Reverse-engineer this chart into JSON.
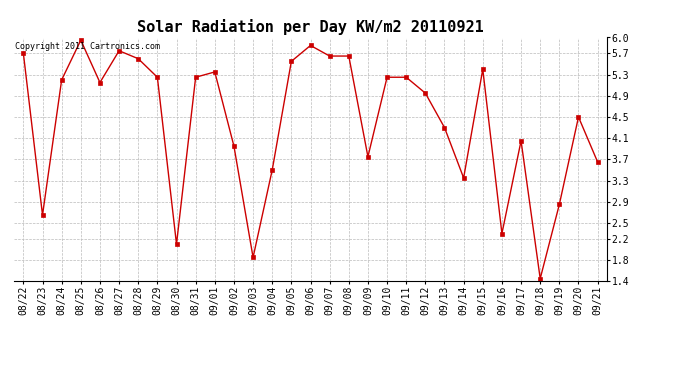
{
  "title": "Solar Radiation per Day KW/m2 20110921",
  "copyright_text": "Copyright 2011 Cartronics.com",
  "x_labels": [
    "08/22",
    "08/23",
    "08/24",
    "08/25",
    "08/26",
    "08/27",
    "08/28",
    "08/29",
    "08/30",
    "08/31",
    "09/01",
    "09/02",
    "09/03",
    "09/04",
    "09/05",
    "09/06",
    "09/07",
    "09/08",
    "09/09",
    "09/10",
    "09/11",
    "09/12",
    "09/13",
    "09/14",
    "09/15",
    "09/16",
    "09/17",
    "09/18",
    "09/19",
    "09/20",
    "09/21"
  ],
  "y_values": [
    5.7,
    2.65,
    5.2,
    5.95,
    5.15,
    5.75,
    5.6,
    5.25,
    2.1,
    5.25,
    5.35,
    3.95,
    1.85,
    3.5,
    5.55,
    5.85,
    5.65,
    5.65,
    3.75,
    5.25,
    5.25,
    4.95,
    4.3,
    3.35,
    5.4,
    2.3,
    4.05,
    1.45,
    2.85,
    4.5,
    3.65
  ],
  "ylim_min": 1.4,
  "ylim_max": 6.0,
  "yticks": [
    1.4,
    1.8,
    2.2,
    2.5,
    2.9,
    3.3,
    3.7,
    4.1,
    4.5,
    4.9,
    5.3,
    5.7,
    6.0
  ],
  "line_color": "#cc0000",
  "marker_color": "#cc0000",
  "marker": "s",
  "marker_size": 2.5,
  "bg_color": "#ffffff",
  "grid_color": "#bbbbbb",
  "title_fontsize": 11,
  "copyright_fontsize": 6,
  "tick_fontsize": 7
}
